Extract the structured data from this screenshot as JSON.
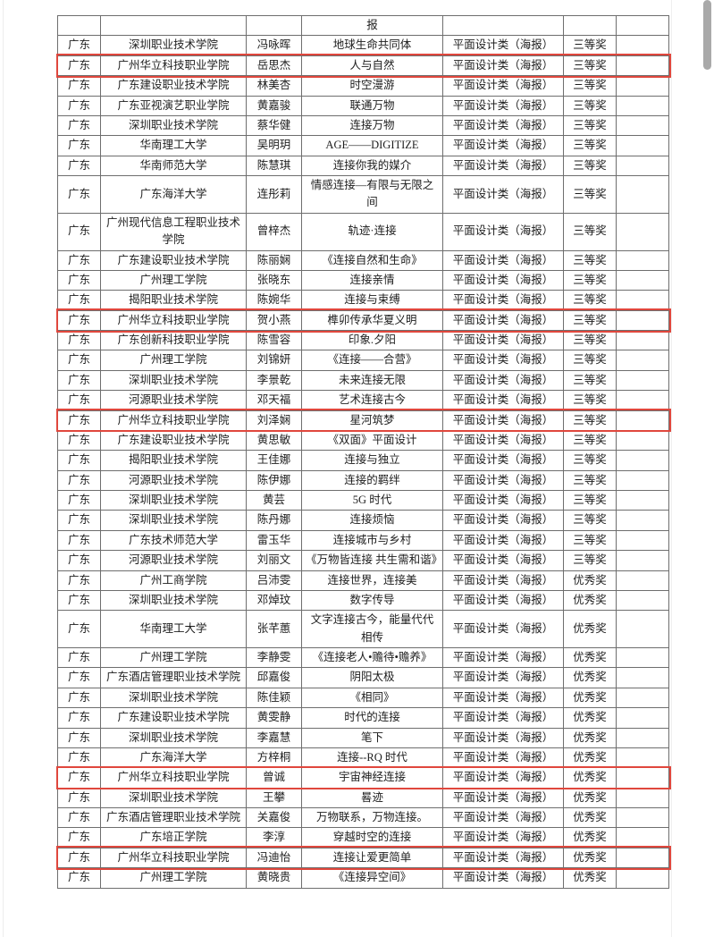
{
  "page": {
    "background": "#ffffff",
    "scrollbar_thumb_color": "#a9a9a9"
  },
  "table": {
    "highlight_color": "#e0473d",
    "border_color": "#6e6e6e",
    "category_label": "平面设计类（海报）",
    "award_levels": [
      "三等奖",
      "优秀奖"
    ],
    "columns": [
      "province",
      "school",
      "name",
      "title",
      "category",
      "award",
      "note"
    ],
    "rows": [
      {
        "province": "",
        "school": "",
        "name": "",
        "title": "报",
        "category": "",
        "award": "",
        "note": "",
        "highlight": false
      },
      {
        "province": "广东",
        "school": "深圳职业技术学院",
        "name": "冯咏晖",
        "title": "地球生命共同体",
        "category": "平面设计类（海报）",
        "award": "三等奖",
        "note": "",
        "highlight": false
      },
      {
        "province": "广东",
        "school": "广州华立科技职业学院",
        "name": "岳思杰",
        "title": "人与自然",
        "category": "平面设计类（海报）",
        "award": "三等奖",
        "note": "",
        "highlight": true
      },
      {
        "province": "广东",
        "school": "广东建设职业技术学院",
        "name": "林美杏",
        "title": "时空漫游",
        "category": "平面设计类（海报）",
        "award": "三等奖",
        "note": "",
        "highlight": false
      },
      {
        "province": "广东",
        "school": "广东亚视演艺职业学院",
        "name": "黄嘉骏",
        "title": "联通万物",
        "category": "平面设计类（海报）",
        "award": "三等奖",
        "note": "",
        "highlight": false
      },
      {
        "province": "广东",
        "school": "深圳职业技术学院",
        "name": "蔡华健",
        "title": "连接万物",
        "category": "平面设计类（海报）",
        "award": "三等奖",
        "note": "",
        "highlight": false
      },
      {
        "province": "广东",
        "school": "华南理工大学",
        "name": "吴明玥",
        "title": "AGE——DIGITIZE",
        "category": "平面设计类（海报）",
        "award": "三等奖",
        "note": "",
        "highlight": false
      },
      {
        "province": "广东",
        "school": "华南师范大学",
        "name": "陈慧琪",
        "title": "连接你我的媒介",
        "category": "平面设计类（海报）",
        "award": "三等奖",
        "note": "",
        "highlight": false
      },
      {
        "province": "广东",
        "school": "广东海洋大学",
        "name": "连彤莉",
        "title": "情感连接—有限与无限之间",
        "category": "平面设计类（海报）",
        "award": "三等奖",
        "note": "",
        "highlight": false
      },
      {
        "province": "广东",
        "school": "广州现代信息工程职业技术学院",
        "name": "曾梓杰",
        "title": "轨迹·连接",
        "category": "平面设计类（海报）",
        "award": "三等奖",
        "note": "",
        "highlight": false
      },
      {
        "province": "广东",
        "school": "广东建设职业技术学院",
        "name": "陈丽娴",
        "title": "《连接自然和生命》",
        "category": "平面设计类（海报）",
        "award": "三等奖",
        "note": "",
        "highlight": false
      },
      {
        "province": "广东",
        "school": "广州理工学院",
        "name": "张晓东",
        "title": "连接亲情",
        "category": "平面设计类（海报）",
        "award": "三等奖",
        "note": "",
        "highlight": false
      },
      {
        "province": "广东",
        "school": "揭阳职业技术学院",
        "name": "陈婉华",
        "title": "连接与束缚",
        "category": "平面设计类（海报）",
        "award": "三等奖",
        "note": "",
        "highlight": false
      },
      {
        "province": "广东",
        "school": "广州华立科技职业学院",
        "name": "贺小燕",
        "title": "榫卯传承华夏义明",
        "category": "平面设计类（海报）",
        "award": "三等奖",
        "note": "",
        "highlight": true
      },
      {
        "province": "广东",
        "school": "广东创新科技职业学院",
        "name": "陈雪容",
        "title": "印象.夕阳",
        "category": "平面设计类（海报）",
        "award": "三等奖",
        "note": "",
        "highlight": false
      },
      {
        "province": "广东",
        "school": "广州理工学院",
        "name": "刘锦妍",
        "title": "《连接——合营》",
        "category": "平面设计类（海报）",
        "award": "三等奖",
        "note": "",
        "highlight": false
      },
      {
        "province": "广东",
        "school": "深圳职业技术学院",
        "name": "李景乾",
        "title": "未来连接无限",
        "category": "平面设计类（海报）",
        "award": "三等奖",
        "note": "",
        "highlight": false
      },
      {
        "province": "广东",
        "school": "河源职业技术学院",
        "name": "邓天福",
        "title": "艺术连接古今",
        "category": "平面设计类（海报）",
        "award": "三等奖",
        "note": "",
        "highlight": false
      },
      {
        "province": "广东",
        "school": "广州华立科技职业学院",
        "name": "刘泽娴",
        "title": "星河筑梦",
        "category": "平面设计类（海报）",
        "award": "三等奖",
        "note": "",
        "highlight": true
      },
      {
        "province": "广东",
        "school": "广东建设职业技术学院",
        "name": "黄思敏",
        "title": "《双面》平面设计",
        "category": "平面设计类（海报）",
        "award": "三等奖",
        "note": "",
        "highlight": false
      },
      {
        "province": "广东",
        "school": "揭阳职业技术学院",
        "name": "王佳娜",
        "title": "连接与独立",
        "category": "平面设计类（海报）",
        "award": "三等奖",
        "note": "",
        "highlight": false
      },
      {
        "province": "广东",
        "school": "河源职业技术学院",
        "name": "陈伊娜",
        "title": "连接的羁绊",
        "category": "平面设计类（海报）",
        "award": "三等奖",
        "note": "",
        "highlight": false
      },
      {
        "province": "广东",
        "school": "深圳职业技术学院",
        "name": "黄芸",
        "title": "5G 时代",
        "category": "平面设计类（海报）",
        "award": "三等奖",
        "note": "",
        "highlight": false
      },
      {
        "province": "广东",
        "school": "深圳职业技术学院",
        "name": "陈丹娜",
        "title": "连接烦恼",
        "category": "平面设计类（海报）",
        "award": "三等奖",
        "note": "",
        "highlight": false
      },
      {
        "province": "广东",
        "school": "广东技术师范大学",
        "name": "雷玉华",
        "title": "连接城市与乡村",
        "category": "平面设计类（海报）",
        "award": "三等奖",
        "note": "",
        "highlight": false
      },
      {
        "province": "广东",
        "school": "河源职业技术学院",
        "name": "刘丽文",
        "title": "《万物皆连接 共生需和谐》",
        "category": "平面设计类（海报）",
        "award": "三等奖",
        "note": "",
        "highlight": false
      },
      {
        "province": "广东",
        "school": "广州工商学院",
        "name": "吕沛雯",
        "title": "连接世界，连接美",
        "category": "平面设计类（海报）",
        "award": "优秀奖",
        "note": "",
        "highlight": false
      },
      {
        "province": "广东",
        "school": "深圳职业技术学院",
        "name": "邓焯玟",
        "title": "数字传导",
        "category": "平面设计类（海报）",
        "award": "优秀奖",
        "note": "",
        "highlight": false
      },
      {
        "province": "广东",
        "school": "华南理工大学",
        "name": "张芊蕙",
        "title": "文字连接古今，能量代代相传",
        "category": "平面设计类（海报）",
        "award": "优秀奖",
        "note": "",
        "highlight": false
      },
      {
        "province": "广东",
        "school": "广州理工学院",
        "name": "李静雯",
        "title": "《连接老人•赡待•赡养》",
        "category": "平面设计类（海报）",
        "award": "优秀奖",
        "note": "",
        "highlight": false
      },
      {
        "province": "广东",
        "school": "广东酒店管理职业技术学院",
        "name": "邱嘉俊",
        "title": "阴阳太极",
        "category": "平面设计类（海报）",
        "award": "优秀奖",
        "note": "",
        "highlight": false
      },
      {
        "province": "广东",
        "school": "深圳职业技术学院",
        "name": "陈佳颖",
        "title": "《相同》",
        "category": "平面设计类（海报）",
        "award": "优秀奖",
        "note": "",
        "highlight": false
      },
      {
        "province": "广东",
        "school": "广东建设职业技术学院",
        "name": "黄雯静",
        "title": "时代的连接",
        "category": "平面设计类（海报）",
        "award": "优秀奖",
        "note": "",
        "highlight": false
      },
      {
        "province": "广东",
        "school": "深圳职业技术学院",
        "name": "李嘉慧",
        "title": "笔下",
        "category": "平面设计类（海报）",
        "award": "优秀奖",
        "note": "",
        "highlight": false
      },
      {
        "province": "广东",
        "school": "广东海洋大学",
        "name": "方梓桐",
        "title": "连接--RQ 时代",
        "category": "平面设计类（海报）",
        "award": "优秀奖",
        "note": "",
        "highlight": false
      },
      {
        "province": "广东",
        "school": "广州华立科技职业学院",
        "name": "曾诚",
        "title": "宇宙神经连接",
        "category": "平面设计类（海报）",
        "award": "优秀奖",
        "note": "",
        "highlight": true
      },
      {
        "province": "广东",
        "school": "深圳职业技术学院",
        "name": "王攀",
        "title": "晷迹",
        "category": "平面设计类（海报）",
        "award": "优秀奖",
        "note": "",
        "highlight": false
      },
      {
        "province": "广东",
        "school": "广东酒店管理职业技术学院",
        "name": "关嘉俊",
        "title": "万物联系，万物连接。",
        "category": "平面设计类（海报）",
        "award": "优秀奖",
        "note": "",
        "highlight": false
      },
      {
        "province": "广东",
        "school": "广东培正学院",
        "name": "李淳",
        "title": "穿越时空的连接",
        "category": "平面设计类（海报）",
        "award": "优秀奖",
        "note": "",
        "highlight": false
      },
      {
        "province": "广东",
        "school": "广州华立科技职业学院",
        "name": "冯迪怡",
        "title": "连接让爱更简单",
        "category": "平面设计类（海报）",
        "award": "优秀奖",
        "note": "",
        "highlight": true
      },
      {
        "province": "广东",
        "school": "广州理工学院",
        "name": "黄晓贵",
        "title": "《连接异空间》",
        "category": "平面设计类（海报）",
        "award": "优秀奖",
        "note": "",
        "highlight": false
      }
    ]
  }
}
